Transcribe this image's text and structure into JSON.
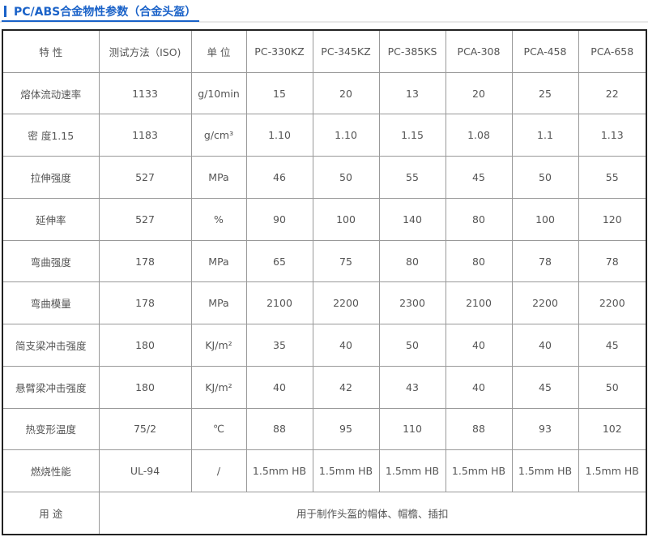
{
  "title": "PC/ABS合金物性参数（合金头盔）",
  "colors": {
    "accent": "#1a62c8",
    "outer_border": "#222222",
    "grid": "#999999",
    "text": "#555555"
  },
  "table": {
    "headers": [
      "特 性",
      "测试方法（ISO)",
      "单 位",
      "PC-330KZ",
      "PC-345KZ",
      "PC-385KS",
      "PCA-308",
      "PCA-458",
      "PCA-658"
    ],
    "rows": [
      [
        "熔体流动速率",
        "1133",
        "g/10min",
        "15",
        "20",
        "13",
        "20",
        "25",
        "22"
      ],
      [
        "密 度1.15",
        "1183",
        "g/cm³",
        "1.10",
        "1.10",
        "1.15",
        "1.08",
        "1.1",
        "1.13"
      ],
      [
        "拉伸强度",
        "527",
        "MPa",
        "46",
        "50",
        "55",
        "45",
        "50",
        "55"
      ],
      [
        "延伸率",
        "527",
        "%",
        "90",
        "100",
        "140",
        "80",
        "100",
        "120"
      ],
      [
        "弯曲强度",
        "178",
        "MPa",
        "65",
        "75",
        "80",
        "80",
        "78",
        "78"
      ],
      [
        "弯曲模量",
        "178",
        "MPa",
        "2100",
        "2200",
        "2300",
        "2100",
        "2200",
        "2200"
      ],
      [
        "简支梁冲击强度",
        "180",
        "KJ/m²",
        "35",
        "40",
        "50",
        "40",
        "40",
        "45"
      ],
      [
        "悬臂梁冲击强度",
        "180",
        "KJ/m²",
        "40",
        "42",
        "43",
        "40",
        "45",
        "50"
      ],
      [
        "热变形温度",
        "75/2",
        "℃",
        "88",
        "95",
        "110",
        "88",
        "93",
        "102"
      ],
      [
        "燃烧性能",
        "UL-94",
        "/",
        "1.5mm HB",
        "1.5mm HB",
        "1.5mm HB",
        "1.5mm HB",
        "1.5mm HB",
        "1.5mm HB"
      ]
    ],
    "usage": {
      "label": "用 途",
      "value": "用于制作头盔的帽体、帽檐、插扣"
    }
  }
}
